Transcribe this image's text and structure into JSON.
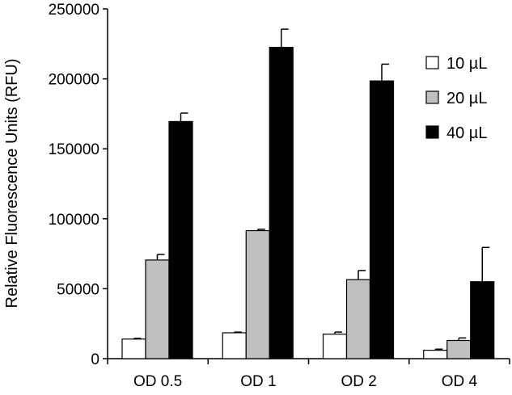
{
  "chart_data": {
    "type": "bar",
    "title": "",
    "xlabel": "",
    "ylabel": "Relative Fluorescence Units (RFU)",
    "ylim": [
      0,
      250000
    ],
    "yticks": [
      "0",
      "50000",
      "100000",
      "150000",
      "200000",
      "250000"
    ],
    "grid": false,
    "legend_position": "top-right",
    "categories": [
      "OD 0.5",
      "OD 1",
      "OD 2",
      "OD 4"
    ],
    "series": [
      {
        "name": "10 µL",
        "color": "#ffffff",
        "values": [
          14000,
          18500,
          17500,
          6000
        ],
        "errors": [
          500,
          500,
          1500,
          800
        ]
      },
      {
        "name": "20 µL",
        "color": "#c0c0c0",
        "values": [
          70500,
          91500,
          56500,
          13000
        ],
        "errors": [
          4000,
          1000,
          6500,
          1800
        ]
      },
      {
        "name": "40 µL",
        "color": "#000000",
        "values": [
          169500,
          222500,
          198500,
          55000
        ],
        "errors": [
          6000,
          13000,
          12000,
          24500
        ]
      }
    ]
  }
}
